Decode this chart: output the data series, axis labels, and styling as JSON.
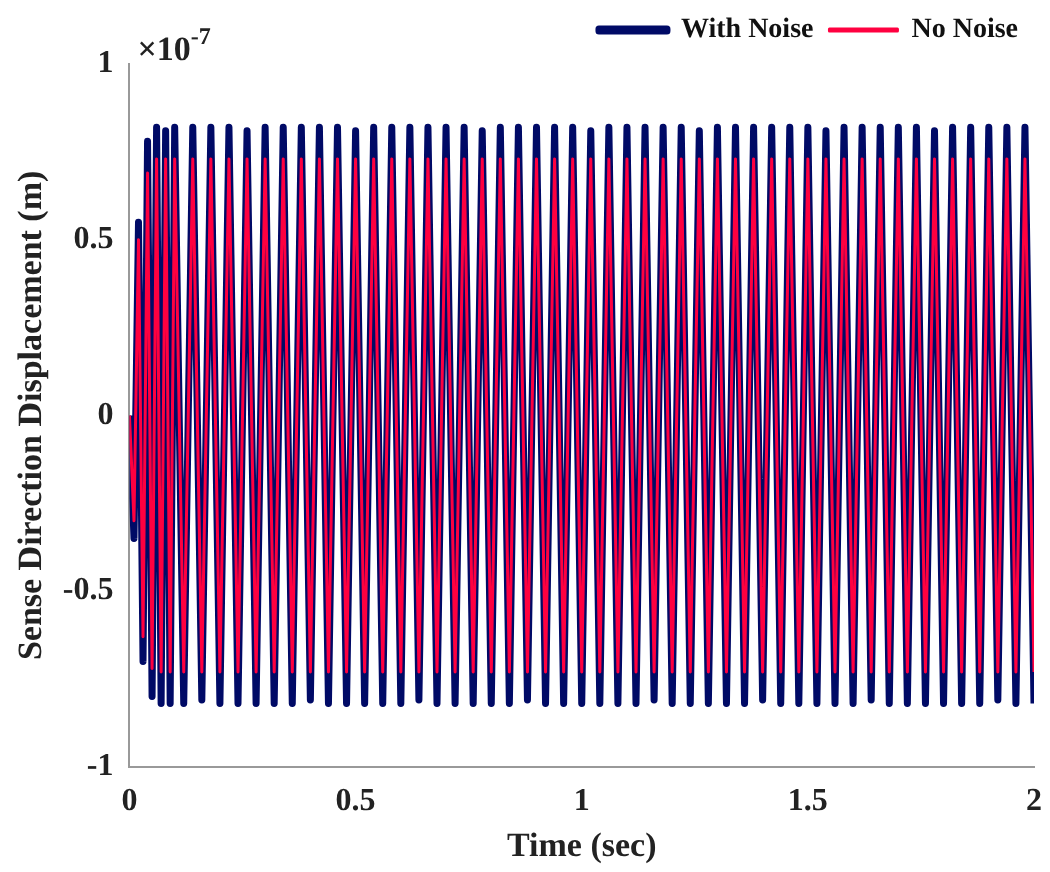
{
  "chart_data": {
    "type": "line",
    "xlabel": "Time (sec)",
    "ylabel": "Sense Direction Displacement (m)",
    "annotations": [
      "×10$^{-7}$"
    ],
    "x": [
      0,
      0.01,
      0.02,
      0.03,
      0.04,
      0.05,
      0.06,
      0.07,
      0.08,
      0.09,
      0.1,
      0.12,
      0.14,
      0.16,
      0.18,
      0.2,
      0.22,
      0.24,
      0.26,
      0.28,
      0.3,
      0.32,
      0.34,
      0.36,
      0.38,
      0.4,
      0.42,
      0.44,
      0.46,
      0.48,
      0.5,
      0.52,
      0.54,
      0.56,
      0.58,
      0.6,
      0.62,
      0.64,
      0.66,
      0.68,
      0.7,
      0.72,
      0.74,
      0.76,
      0.78,
      0.8,
      0.82,
      0.84,
      0.86,
      0.88,
      0.9,
      0.92,
      0.94,
      0.96,
      0.98,
      1,
      1.02,
      1.04,
      1.06,
      1.08,
      1.1,
      1.12,
      1.14,
      1.16,
      1.18,
      1.2,
      1.22,
      1.24,
      1.26,
      1.28,
      1.3,
      1.32,
      1.34,
      1.36,
      1.38,
      1.4,
      1.42,
      1.44,
      1.46,
      1.48,
      1.5,
      1.52,
      1.54,
      1.56,
      1.58,
      1.6,
      1.62,
      1.64,
      1.66,
      1.68,
      1.7,
      1.72,
      1.74,
      1.76,
      1.78,
      1.8,
      1.82,
      1.84,
      1.86,
      1.88,
      1.9,
      1.92,
      1.94,
      1.96,
      1.98,
      2
    ],
    "series": [
      {
        "name": "With Noise",
        "color": "#000a66",
        "values": [
          0,
          -0.35,
          0.55,
          -0.7,
          0.78,
          -0.8,
          0.82,
          -0.82,
          0.81,
          -0.82,
          0.82,
          -0.82,
          0.82,
          -0.81,
          0.82,
          -0.82,
          0.82,
          -0.82,
          0.81,
          -0.82,
          0.82,
          -0.82,
          0.82,
          -0.82,
          0.82,
          -0.81,
          0.82,
          -0.82,
          0.82,
          -0.82,
          0.81,
          -0.82,
          0.82,
          -0.82,
          0.82,
          -0.82,
          0.82,
          -0.81,
          0.82,
          -0.82,
          0.82,
          -0.82,
          0.82,
          -0.82,
          0.81,
          -0.82,
          0.82,
          -0.82,
          0.82,
          -0.81,
          0.82,
          -0.82,
          0.82,
          -0.82,
          0.82,
          -0.82,
          0.81,
          -0.82,
          0.82,
          -0.82,
          0.82,
          -0.82,
          0.82,
          -0.81,
          0.82,
          -0.82,
          0.82,
          -0.82,
          0.81,
          -0.82,
          0.82,
          -0.82,
          0.82,
          -0.82,
          0.82,
          -0.81,
          0.82,
          -0.82,
          0.82,
          -0.82,
          0.82,
          -0.82,
          0.81,
          -0.82,
          0.82,
          -0.82,
          0.82,
          -0.81,
          0.82,
          -0.82,
          0.82,
          -0.82,
          0.82,
          -0.82,
          0.81,
          -0.82,
          0.82,
          -0.82,
          0.82,
          -0.82,
          0.82,
          -0.81,
          0.82,
          -0.82,
          0.82,
          -0.82
        ]
      },
      {
        "name": "No Noise",
        "color": "#ff0040",
        "values": [
          0,
          -0.3,
          0.5,
          -0.63,
          0.69,
          -0.72,
          0.73,
          -0.73,
          0.73,
          -0.73,
          0.73,
          -0.73,
          0.73,
          -0.73,
          0.73,
          -0.73,
          0.73,
          -0.73,
          0.73,
          -0.73,
          0.73,
          -0.73,
          0.73,
          -0.73,
          0.73,
          -0.73,
          0.73,
          -0.73,
          0.73,
          -0.73,
          0.73,
          -0.73,
          0.73,
          -0.73,
          0.73,
          -0.73,
          0.73,
          -0.73,
          0.73,
          -0.73,
          0.73,
          -0.73,
          0.73,
          -0.73,
          0.73,
          -0.73,
          0.73,
          -0.73,
          0.73,
          -0.73,
          0.73,
          -0.73,
          0.73,
          -0.73,
          0.73,
          -0.73,
          0.73,
          -0.73,
          0.73,
          -0.73,
          0.73,
          -0.73,
          0.73,
          -0.73,
          0.73,
          -0.73,
          0.73,
          -0.73,
          0.73,
          -0.73,
          0.73,
          -0.73,
          0.73,
          -0.73,
          0.73,
          -0.73,
          0.73,
          -0.73,
          0.73,
          -0.73,
          0.73,
          -0.73,
          0.73,
          -0.73,
          0.73,
          -0.73,
          0.73,
          -0.73,
          0.73,
          -0.73,
          0.73,
          -0.73,
          0.73,
          -0.73,
          0.73,
          -0.73,
          0.73,
          -0.73,
          0.73,
          -0.73,
          0.73,
          -0.73,
          0.73,
          -0.73,
          0.73,
          -0.73
        ]
      }
    ],
    "xlim": [
      0,
      2
    ],
    "xticks": [
      0,
      0.5,
      1,
      1.5,
      2
    ],
    "ylim": [
      -1,
      1
    ],
    "yticks": [
      -1,
      -0.5,
      0,
      0.5,
      1
    ],
    "grid": false,
    "legend": "top right",
    "marker": "none",
    "line_style": "solid"
  }
}
